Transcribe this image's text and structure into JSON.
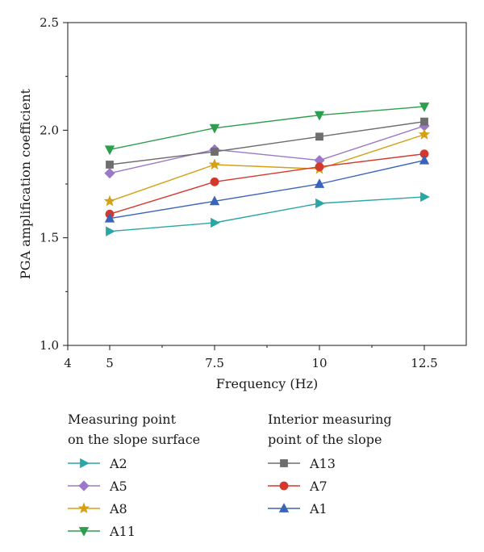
{
  "chart_data": {
    "type": "line",
    "title": "",
    "xlabel": "Frequency (Hz)",
    "ylabel": "PGA amplification coefficient",
    "xlim": [
      4,
      13.5
    ],
    "ylim": [
      1.0,
      2.5
    ],
    "x_ticks": [
      4,
      5,
      7.5,
      10,
      12.5
    ],
    "x_tick_labels": [
      "4",
      "5",
      "7.5",
      "10",
      "12.5"
    ],
    "y_ticks": [
      1.0,
      1.5,
      2.0,
      2.5
    ],
    "y_tick_labels": [
      "1.0",
      "1.5",
      "2.0",
      "2.5"
    ],
    "grid": false,
    "legend_placement": "bottom",
    "legend_groups": [
      {
        "title_lines": [
          "Measuring point",
          "on the slope surface"
        ],
        "series": [
          "A2",
          "A5",
          "A8",
          "A11"
        ]
      },
      {
        "title_lines": [
          "Interior measuring",
          "point of the slope"
        ],
        "series": [
          "A13",
          "A7",
          "A1"
        ]
      }
    ],
    "x": [
      5,
      7.5,
      10,
      12.5
    ],
    "series": [
      {
        "name": "A2",
        "color": "#2ba6a6",
        "marker": "triangle-right",
        "values": [
          1.53,
          1.57,
          1.66,
          1.69
        ]
      },
      {
        "name": "A5",
        "color": "#9b78c8",
        "marker": "diamond",
        "values": [
          1.8,
          1.91,
          1.86,
          2.02
        ]
      },
      {
        "name": "A8",
        "color": "#d4a017",
        "marker": "star",
        "values": [
          1.67,
          1.84,
          1.82,
          1.98
        ]
      },
      {
        "name": "A11",
        "color": "#2e9e4e",
        "marker": "triangle-down",
        "values": [
          1.91,
          2.01,
          2.07,
          2.11
        ]
      },
      {
        "name": "A13",
        "color": "#6e6e6e",
        "marker": "square",
        "values": [
          1.84,
          1.9,
          1.97,
          2.04
        ]
      },
      {
        "name": "A7",
        "color": "#d4382c",
        "marker": "circle",
        "values": [
          1.61,
          1.76,
          1.83,
          1.89
        ]
      },
      {
        "name": "A1",
        "color": "#3a64b8",
        "marker": "triangle-up",
        "values": [
          1.59,
          1.67,
          1.75,
          1.86
        ]
      }
    ]
  }
}
